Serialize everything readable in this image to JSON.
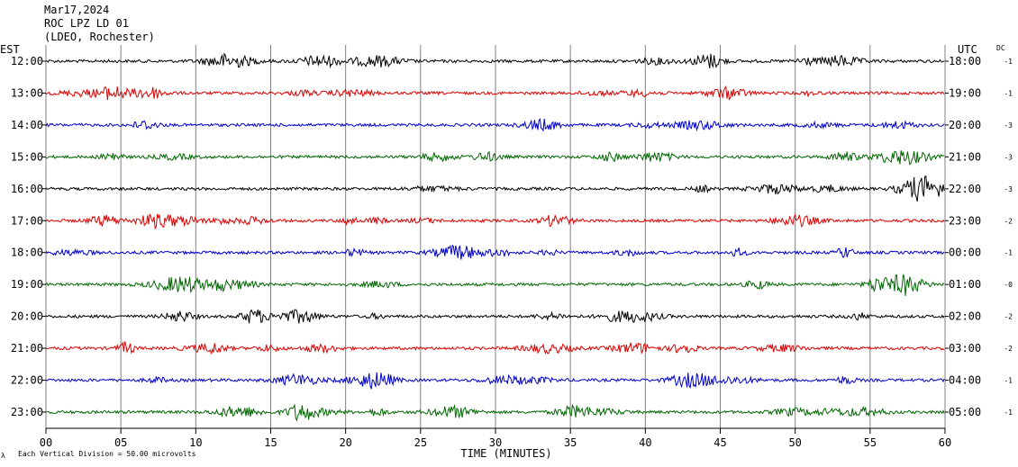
{
  "header": {
    "date": "Mar17,2024",
    "station": "ROC LPZ LD 01",
    "network": "(LDEO, Rochester)"
  },
  "left_axis_title": "EST",
  "right_axis_title": "UTC",
  "dc_title": "DC",
  "footer": {
    "scale_icon": "λ",
    "scale_text": "Each Vertical Division =   50.00 microvolts"
  },
  "colors": {
    "black": "#000000",
    "red": "#dd0000",
    "blue": "#0000cc",
    "green": "#006600",
    "grid": "#808080"
  },
  "chart_data": {
    "type": "line",
    "title": "",
    "xlabel": "TIME (MINUTES)",
    "xlim": [
      0,
      60
    ],
    "x_ticks": [
      "00",
      "05",
      "10",
      "15",
      "20",
      "25",
      "30",
      "35",
      "40",
      "45",
      "50",
      "55",
      "60"
    ],
    "rows": [
      {
        "est": "12:00",
        "utc": "18:00",
        "dc": "-1",
        "color": "#000000"
      },
      {
        "est": "13:00",
        "utc": "19:00",
        "dc": "-1",
        "color": "#dd0000"
      },
      {
        "est": "14:00",
        "utc": "20:00",
        "dc": "-3",
        "color": "#0000cc"
      },
      {
        "est": "15:00",
        "utc": "21:00",
        "dc": "-3",
        "color": "#006600"
      },
      {
        "est": "16:00",
        "utc": "22:00",
        "dc": "-3",
        "color": "#000000"
      },
      {
        "est": "17:00",
        "utc": "23:00",
        "dc": "-2",
        "color": "#dd0000"
      },
      {
        "est": "18:00",
        "utc": "00:00",
        "dc": "-1",
        "color": "#0000cc"
      },
      {
        "est": "19:00",
        "utc": "01:00",
        "dc": "-0",
        "color": "#006600"
      },
      {
        "est": "20:00",
        "utc": "02:00",
        "dc": "-2",
        "color": "#000000"
      },
      {
        "est": "21:00",
        "utc": "03:00",
        "dc": "-2",
        "color": "#dd0000"
      },
      {
        "est": "22:00",
        "utc": "04:00",
        "dc": "-1",
        "color": "#0000cc"
      },
      {
        "est": "23:00",
        "utc": "05:00",
        "dc": "-1",
        "color": "#006600"
      }
    ]
  }
}
